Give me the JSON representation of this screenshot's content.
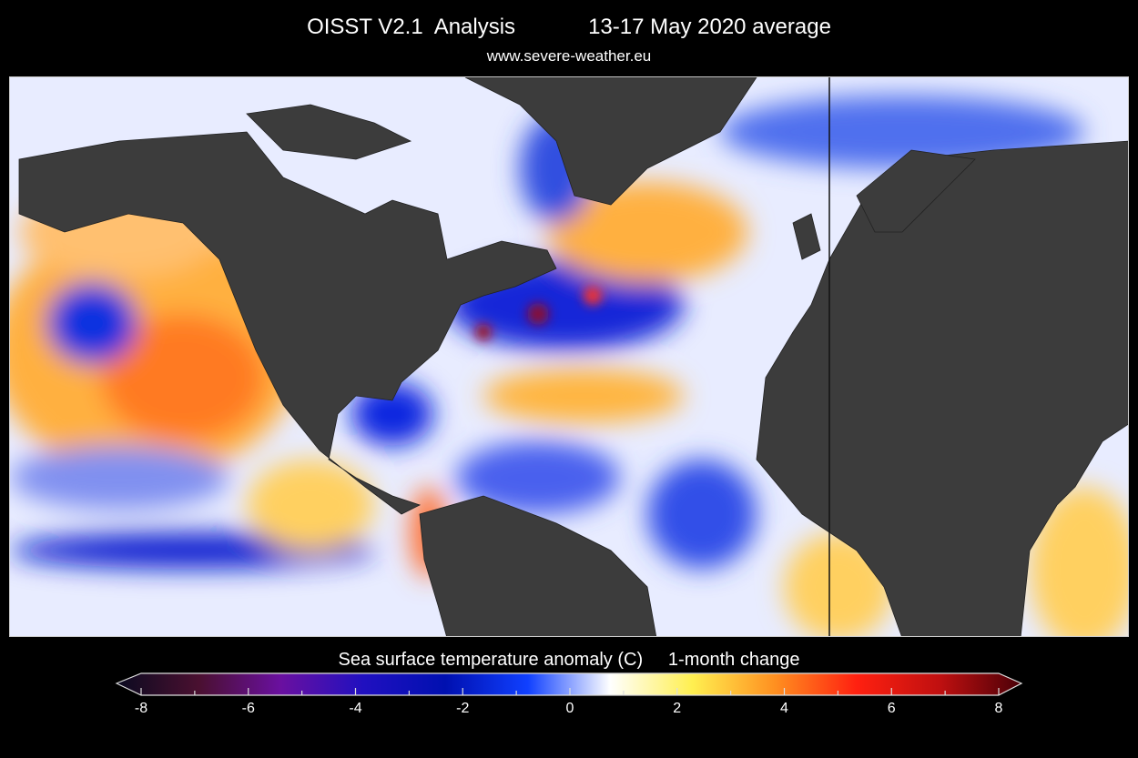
{
  "header": {
    "title_left": "OISST V2.1  Analysis",
    "title_right": "13-17 May 2020 average",
    "subtitle": "www.severe-weather.eu"
  },
  "map": {
    "land_color": "#3c3c3c",
    "variable": "Sea surface temperature anomaly",
    "period": "1-month change"
  },
  "colorbar": {
    "title_left": "Sea surface temperature anomaly (C)",
    "title_right": "1-month change",
    "min": -8,
    "max": 8,
    "ticks": [
      "-8",
      "-6",
      "-4",
      "-2",
      "0",
      "2",
      "4",
      "6",
      "8"
    ],
    "colors": [
      "#0a0a20",
      "#4a1030",
      "#6a10a0",
      "#2010c0",
      "#0010b0",
      "#1040ff",
      "#ffffff",
      "#ffef50",
      "#ff9020",
      "#ff2010",
      "#c01010",
      "#4a0008"
    ]
  }
}
